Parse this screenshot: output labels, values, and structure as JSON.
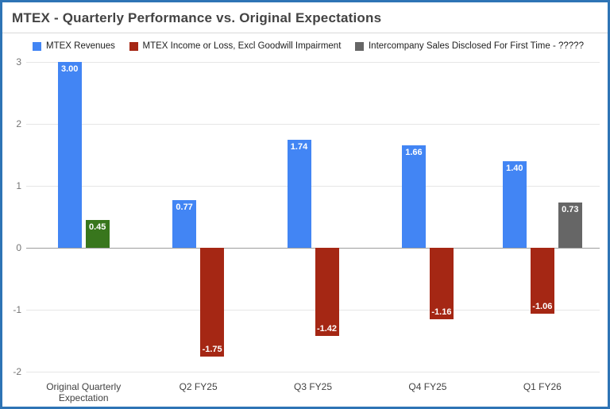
{
  "page": {
    "title": "MTEX - Quarterly Performance vs. Original Expectations"
  },
  "colors": {
    "border": "#2e74b5",
    "title_text": "#434343",
    "revenues_bar": "#4285f4",
    "income_bar": "#a52714",
    "income_positive_bar": "#38761d",
    "intercompany_bar": "#666666",
    "value_label_text": "#ffffff"
  },
  "chart_data": {
    "type": "bar",
    "title": "MTEX - Quarterly Performance vs. Original Expectations",
    "xlabel": "",
    "ylabel": "",
    "ylim": [
      -2,
      3
    ],
    "yticks": [
      3,
      2,
      1,
      0,
      -1,
      -2
    ],
    "grid": true,
    "legend_position": "top",
    "categories": [
      "Original Quarterly Expectation",
      "Q2 FY25",
      "Q3 FY25",
      "Q4 FY25",
      "Q1 FY26"
    ],
    "series": [
      {
        "name": "MTEX Revenues",
        "color": "#4285f4",
        "values": [
          3.0,
          0.77,
          1.74,
          1.66,
          1.4
        ],
        "labels": [
          "3.00",
          "0.77",
          "1.74",
          "1.66",
          "1.40"
        ]
      },
      {
        "name": "MTEX Income or Loss, Excl Goodwill Impairment",
        "color": "#a52714",
        "point_colors": [
          "#38761d",
          null,
          null,
          null,
          null
        ],
        "values": [
          0.45,
          -1.75,
          -1.42,
          -1.16,
          -1.06
        ],
        "labels": [
          "0.45",
          "-1.75",
          "-1.42",
          "-1.16",
          "-1.06"
        ]
      },
      {
        "name": "Intercompany Sales Disclosed For First Time - ?????",
        "color": "#666666",
        "values": [
          null,
          null,
          null,
          null,
          0.73
        ],
        "labels": [
          null,
          null,
          null,
          null,
          "0.73"
        ]
      }
    ]
  }
}
